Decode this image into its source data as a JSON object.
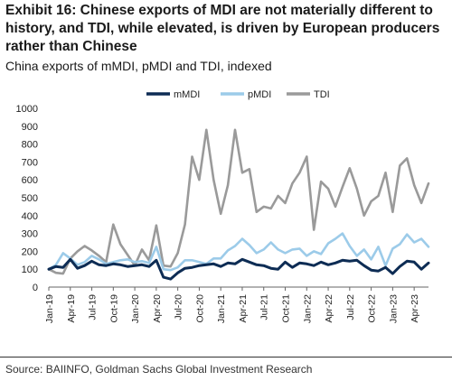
{
  "header": {
    "title": "Exhibit 16: Chinese exports of MDI are not materially different to history, and TDI, while elevated, is driven by European producers rather than Chinese",
    "subtitle": "China exports of mMDI, pMDI and TDI, indexed"
  },
  "footer": {
    "source": "Source: BAIINFO, Goldman Sachs Global Investment Research"
  },
  "colors": {
    "mMDI": "#0d2c54",
    "pMDI": "#9ccbe9",
    "TDI": "#9a9a9a"
  },
  "chart_data": {
    "type": "line",
    "title": "",
    "xlabel": "",
    "ylabel": "",
    "ylim": [
      0,
      1000
    ],
    "yticks": [
      0,
      100,
      200,
      300,
      400,
      500,
      600,
      700,
      800,
      900,
      1000
    ],
    "xtick_labels": [
      "Jan-19",
      "Apr-19",
      "Jul-19",
      "Oct-19",
      "Jan-20",
      "Apr-20",
      "Jul-20",
      "Oct-20",
      "Jan-21",
      "Apr-21",
      "Jul-21",
      "Oct-21",
      "Jan-22",
      "Apr-22",
      "Jul-22",
      "Oct-22",
      "Jan-23",
      "Apr-23"
    ],
    "x": [
      "Jan-19",
      "Feb-19",
      "Mar-19",
      "Apr-19",
      "May-19",
      "Jun-19",
      "Jul-19",
      "Aug-19",
      "Sep-19",
      "Oct-19",
      "Nov-19",
      "Dec-19",
      "Jan-20",
      "Feb-20",
      "Mar-20",
      "Apr-20",
      "May-20",
      "Jun-20",
      "Jul-20",
      "Aug-20",
      "Sep-20",
      "Oct-20",
      "Nov-20",
      "Dec-20",
      "Jan-21",
      "Feb-21",
      "Mar-21",
      "Apr-21",
      "May-21",
      "Jun-21",
      "Jul-21",
      "Aug-21",
      "Sep-21",
      "Oct-21",
      "Nov-21",
      "Dec-21",
      "Jan-22",
      "Feb-22",
      "Mar-22",
      "Apr-22",
      "May-22",
      "Jun-22",
      "Jul-22",
      "Aug-22",
      "Sep-22",
      "Oct-22",
      "Nov-22",
      "Dec-22",
      "Jan-23",
      "Feb-23",
      "Mar-23",
      "Apr-23",
      "May-23",
      "Jun-23"
    ],
    "legend_position": "top",
    "grid": false,
    "series": [
      {
        "name": "mMDI",
        "values": [
          100,
          115,
          110,
          155,
          105,
          120,
          145,
          125,
          120,
          130,
          125,
          115,
          120,
          125,
          115,
          150,
          55,
          45,
          80,
          105,
          110,
          120,
          125,
          130,
          115,
          135,
          130,
          155,
          140,
          125,
          120,
          105,
          100,
          140,
          110,
          135,
          130,
          120,
          140,
          125,
          135,
          150,
          145,
          150,
          120,
          95,
          90,
          110,
          75,
          115,
          145,
          140,
          100,
          135
        ]
      },
      {
        "name": "pMDI",
        "values": [
          100,
          125,
          190,
          160,
          125,
          140,
          175,
          155,
          130,
          140,
          150,
          155,
          140,
          145,
          135,
          225,
          100,
          95,
          110,
          150,
          150,
          140,
          130,
          160,
          160,
          205,
          230,
          270,
          235,
          190,
          210,
          250,
          210,
          190,
          210,
          215,
          175,
          200,
          185,
          245,
          270,
          300,
          230,
          175,
          210,
          155,
          225,
          120,
          215,
          240,
          295,
          250,
          270,
          225
        ]
      },
      {
        "name": "TDI",
        "values": [
          100,
          80,
          75,
          160,
          200,
          230,
          205,
          175,
          140,
          350,
          240,
          180,
          120,
          210,
          150,
          345,
          120,
          115,
          190,
          350,
          730,
          600,
          880,
          600,
          410,
          570,
          880,
          640,
          660,
          420,
          450,
          440,
          510,
          470,
          580,
          640,
          730,
          320,
          590,
          550,
          450,
          560,
          665,
          550,
          400,
          480,
          510,
          640,
          420,
          680,
          720,
          570,
          470,
          580
        ]
      }
    ]
  }
}
